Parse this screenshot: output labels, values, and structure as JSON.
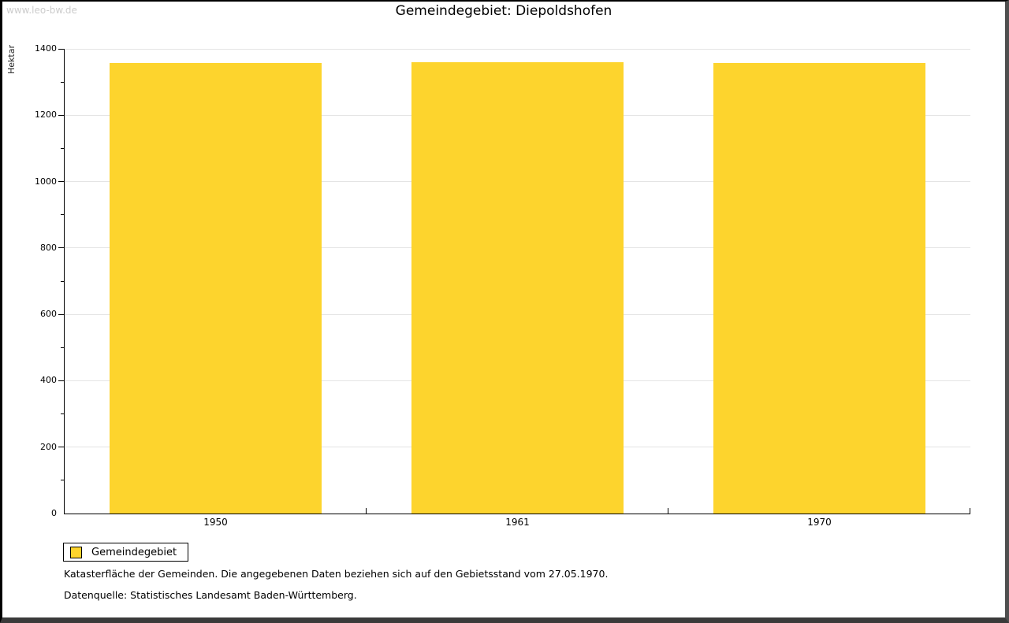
{
  "watermark": "www.leo-bw.de",
  "title": "Gemeindegebiet: Diepoldshofen",
  "chart_data": {
    "type": "bar",
    "title": "Gemeindegebiet: Diepoldshofen",
    "categories": [
      "1950",
      "1961",
      "1970"
    ],
    "series": [
      {
        "name": "Gemeindegebiet",
        "values": [
          1357,
          1360,
          1357
        ]
      }
    ],
    "xlabel": "",
    "ylabel": "Hektar",
    "ylim": [
      0,
      1400
    ],
    "ytick_major_step": 200,
    "ytick_minor_step": 100,
    "ytick_labels": [
      "0",
      "200",
      "400",
      "600",
      "800",
      "1000",
      "1200",
      "1400"
    ],
    "grid": "horizontal-major",
    "legend_position": "bottom-left",
    "bar_color": "#FDD42D",
    "gridline_color": "#e4e4e4",
    "axis_color": "#000000"
  },
  "legend": {
    "items": [
      {
        "label": "Gemeindegebiet",
        "color": "#FDD42D"
      }
    ]
  },
  "footer": {
    "line1": "Katasterfläche der Gemeinden. Die angegebenen Daten beziehen sich auf den Gebietsstand vom 27.05.1970.",
    "line2": "Datenquelle: Statistisches Landesamt Baden-Württemberg."
  }
}
